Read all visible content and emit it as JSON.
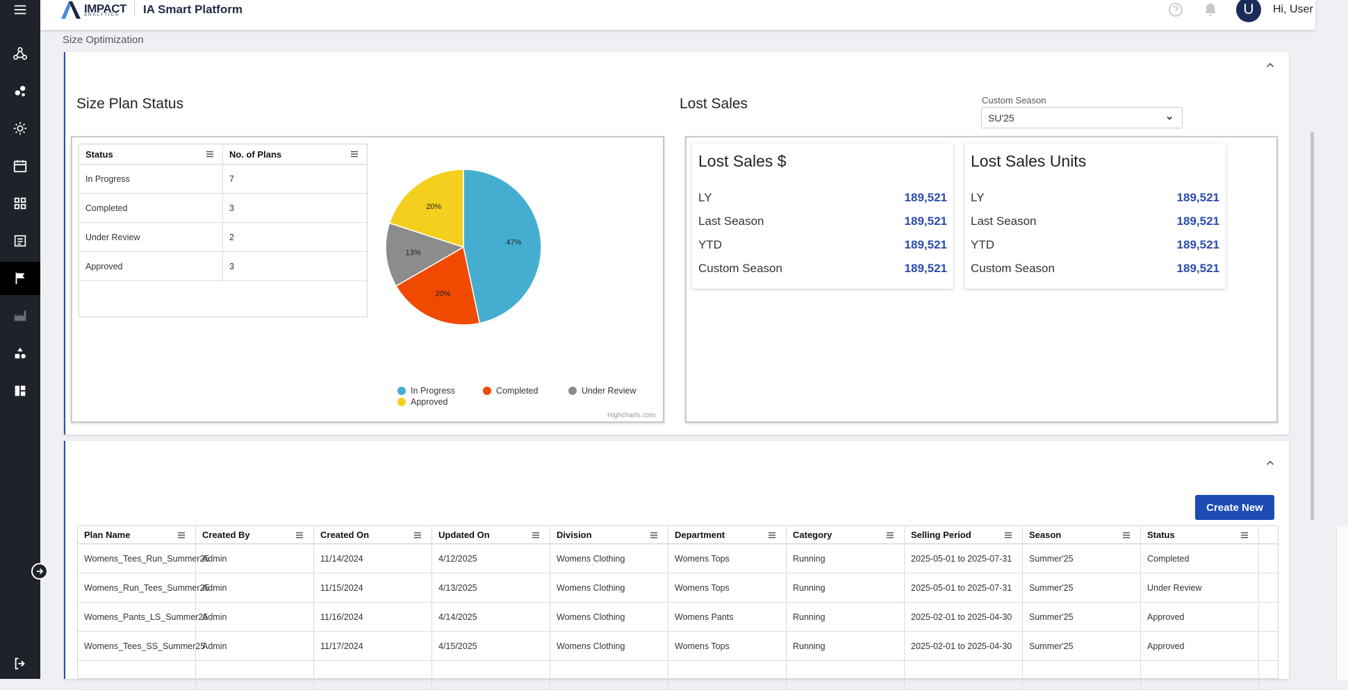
{
  "header": {
    "logo_main": "IMPACT",
    "logo_sub": "ANALYTICS",
    "app_title": "IA Smart Platform",
    "avatar_initial": "U",
    "greeting": "Hi, User"
  },
  "breadcrumb": "Size Optimization",
  "sidebar": {
    "items": [
      {
        "icon": "menu-icon"
      },
      {
        "icon": "network-icon"
      },
      {
        "icon": "bubbles-icon"
      },
      {
        "icon": "bulb-icon"
      },
      {
        "icon": "calendar-icon"
      },
      {
        "icon": "grid-icon"
      },
      {
        "icon": "list-icon"
      },
      {
        "icon": "flag-icon",
        "active": true
      },
      {
        "icon": "factory-icon",
        "disabled": true
      },
      {
        "icon": "shapes-icon"
      },
      {
        "icon": "dashboard-icon"
      },
      {
        "icon": "logout-icon"
      }
    ]
  },
  "size_plan_status": {
    "title": "Size Plan Status",
    "columns": [
      "Status",
      "No. of Plans"
    ],
    "rows": [
      [
        "In Progress",
        "7"
      ],
      [
        "Completed",
        "3"
      ],
      [
        "Under Review",
        "2"
      ],
      [
        "Approved",
        "3"
      ]
    ],
    "credits": "Highcharts.com"
  },
  "chart_data": {
    "type": "pie",
    "categories": [
      "In Progress",
      "Completed",
      "Under Review",
      "Approved"
    ],
    "values": [
      7,
      3,
      2,
      3
    ],
    "data_labels": [
      "47%",
      "20%",
      "13%",
      "20%"
    ],
    "colors": [
      "#45aed0",
      "#f04a00",
      "#8c8c8c",
      "#f4d01e"
    ],
    "legend": "bottom"
  },
  "lost_sales": {
    "title": "Lost Sales",
    "season_label": "Custom Season",
    "season_value": "SU'25",
    "cards": [
      {
        "title": "Lost Sales $",
        "rows": [
          {
            "label": "LY",
            "value": "189,521"
          },
          {
            "label": "Last Season",
            "value": "189,521"
          },
          {
            "label": "YTD",
            "value": "189,521"
          },
          {
            "label": "Custom Season",
            "value": "189,521"
          }
        ]
      },
      {
        "title": "Lost Sales Units",
        "rows": [
          {
            "label": "LY",
            "value": "189,521"
          },
          {
            "label": "Last Season",
            "value": "189,521"
          },
          {
            "label": "YTD",
            "value": "189,521"
          },
          {
            "label": "Custom Season",
            "value": "189,521"
          }
        ]
      }
    ]
  },
  "plans_table": {
    "create_button": "Create New",
    "columns": [
      "Plan Name",
      "Created By",
      "Created On",
      "Updated On",
      "Division",
      "Department",
      "Category",
      "Selling Period",
      "Season",
      "Status"
    ],
    "rows": [
      [
        "Womens_Tees_Run_Summer25",
        "Admin",
        "11/14/2024",
        "4/12/2025",
        "Womens Clothing",
        "Womens Tops",
        "Running",
        "2025-05-01 to 2025-07-31",
        "Summer'25",
        "Completed"
      ],
      [
        "Womens_Run_Tees_Summer25",
        "Admin",
        "11/15/2024",
        "4/13/2025",
        "Womens Clothing",
        "Womens Tops",
        "Running",
        "2025-05-01 to 2025-07-31",
        "Summer'25",
        "Under Review"
      ],
      [
        "Womens_Pants_LS_Summer25",
        "Admin",
        "11/16/2024",
        "4/14/2025",
        "Womens Clothing",
        "Womens Pants",
        "Running",
        "2025-02-01 to 2025-04-30",
        "Summer'25",
        "Approved"
      ],
      [
        "Womens_Tees_SS_Summer25",
        "Admin",
        "11/17/2024",
        "4/15/2025",
        "Womens Clothing",
        "Womens Tops",
        "Running",
        "2025-02-01 to 2025-04-30",
        "Summer'25",
        "Approved"
      ],
      [
        "",
        "",
        "",
        "",
        "",
        "",
        "",
        "",
        "",
        ""
      ]
    ]
  }
}
